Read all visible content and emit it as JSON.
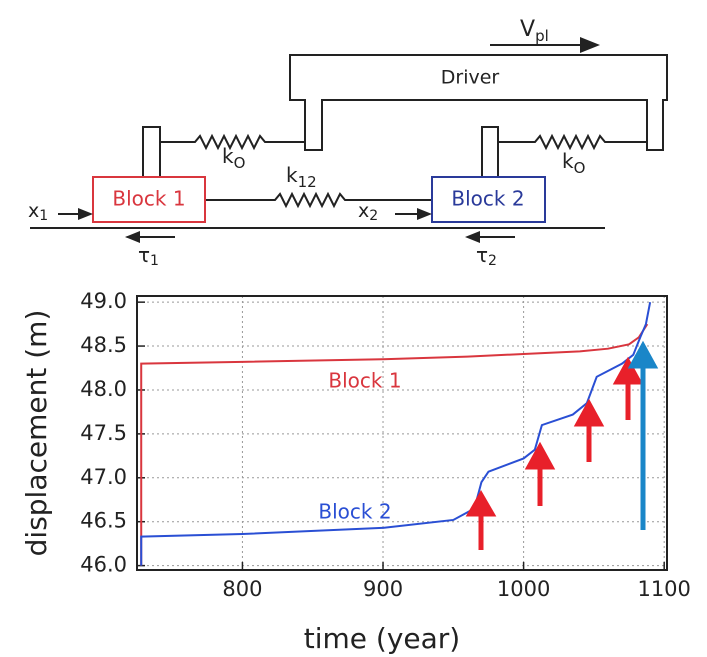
{
  "diagram": {
    "velocity": {
      "base": "V",
      "sub": "pl"
    },
    "driver": "Driver",
    "block1": "Block 1",
    "block2": "Block 2",
    "spring1": {
      "base": "k",
      "sub": "O"
    },
    "spring2": {
      "base": "k",
      "sub": "O"
    },
    "spring12": {
      "base": "k",
      "sub": "12"
    },
    "x1": {
      "base": "x",
      "sub": "1"
    },
    "x2": {
      "base": "x",
      "sub": "2"
    },
    "tau1": {
      "base": "τ",
      "sub": "1"
    },
    "tau2": {
      "base": "τ",
      "sub": "2"
    }
  },
  "chart_data": {
    "type": "line",
    "xlabel": "time (year)",
    "ylabel": "displacement (m)",
    "xlim": [
      725,
      1102
    ],
    "ylim": [
      45.95,
      49.07
    ],
    "xticks": [
      800,
      900,
      1000,
      1100
    ],
    "yticks": [
      {
        "value": 46,
        "label": "46.0"
      },
      46.5,
      {
        "value": 47,
        "label": "47.0"
      },
      47.5,
      {
        "value": 48,
        "label": "48.0"
      },
      48.5,
      {
        "value": 49,
        "label": "49.0"
      }
    ],
    "grid": true,
    "series": [
      {
        "name": "Block 1",
        "color": "#d9363e",
        "x": [
          728,
          728,
          800,
          900,
          960,
          1000,
          1040,
          1060,
          1075,
          1082,
          1088
        ],
        "values": [
          46.0,
          48.3,
          48.32,
          48.35,
          48.38,
          48.41,
          48.44,
          48.47,
          48.52,
          48.6,
          48.75
        ]
      },
      {
        "name": "Block 2",
        "color": "#2a4fd4",
        "x": [
          728,
          728,
          800,
          900,
          950,
          965,
          970,
          975,
          1000,
          1008,
          1013,
          1035,
          1045,
          1052,
          1070,
          1078,
          1083,
          1087,
          1090
        ],
        "values": [
          46.0,
          46.33,
          46.36,
          46.43,
          46.52,
          46.65,
          46.95,
          47.07,
          47.22,
          47.32,
          47.6,
          47.72,
          47.85,
          48.15,
          48.3,
          48.4,
          48.6,
          48.75,
          49.0
        ]
      }
    ]
  }
}
